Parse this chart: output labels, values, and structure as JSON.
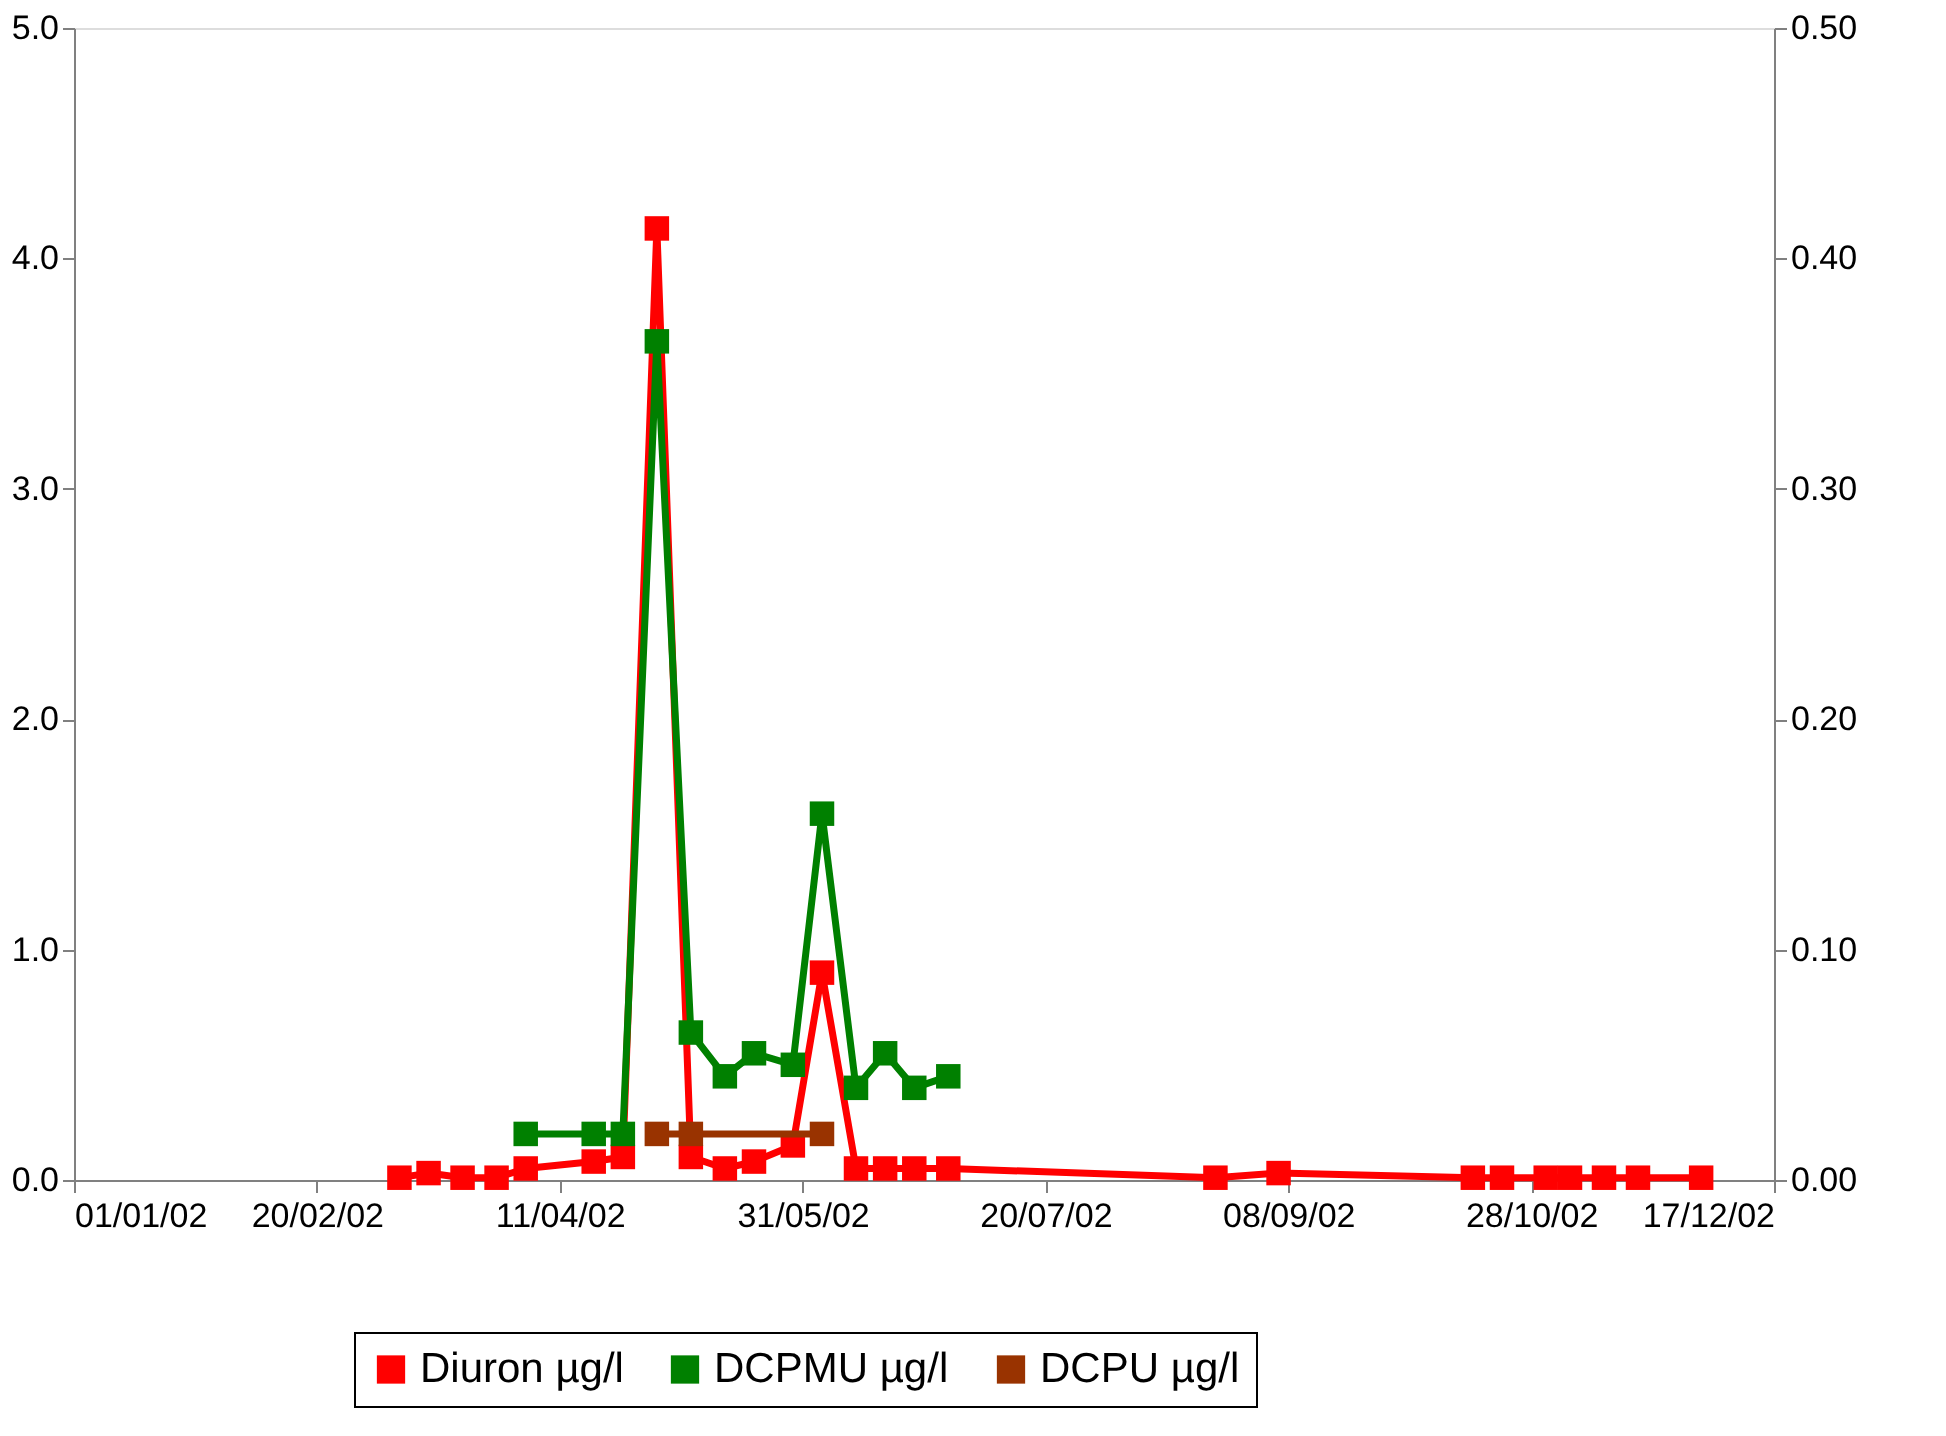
{
  "chart_data": {
    "type": "line",
    "x": [
      "2002-03-09",
      "2002-03-15",
      "2002-03-22",
      "2002-03-29",
      "2002-04-04",
      "2002-04-18",
      "2002-04-24",
      "2002-05-01",
      "2002-05-08",
      "2002-05-15",
      "2002-05-21",
      "2002-05-29",
      "2002-06-04",
      "2002-06-11",
      "2002-06-17",
      "2002-06-23",
      "2002-06-30",
      "2002-08-24",
      "2002-09-06",
      "2002-10-16",
      "2002-10-22",
      "2002-10-31",
      "2002-11-05",
      "2002-11-12",
      "2002-11-19",
      "2002-12-02"
    ],
    "series": [
      {
        "name": "Diuron µg/l",
        "color": "#ff0000",
        "values": [
          0.01,
          0.03,
          0.01,
          0.01,
          0.05,
          0.08,
          0.1,
          4.13,
          0.1,
          0.05,
          0.08,
          0.15,
          0.9,
          0.05,
          0.05,
          0.05,
          0.05,
          0.01,
          0.03,
          0.01,
          0.01,
          0.01,
          0.01,
          0.01,
          0.01,
          0.01
        ]
      },
      {
        "name": "DCPMU µg/l",
        "color": "#008000",
        "axis": "y2",
        "x": [
          "2002-04-04",
          "2002-04-18",
          "2002-04-24",
          "2002-05-01",
          "2002-05-08",
          "2002-05-15",
          "2002-05-21",
          "2002-05-29",
          "2002-06-04",
          "2002-06-11",
          "2002-06-17",
          "2002-06-23",
          "2002-06-30"
        ],
        "values": [
          0.02,
          0.02,
          0.02,
          0.364,
          0.064,
          0.045,
          0.055,
          0.05,
          0.159,
          0.04,
          0.055,
          0.04,
          0.045
        ]
      },
      {
        "name": "DCPU µg/l",
        "color": "#993300",
        "axis": "y2",
        "x": [
          "2002-05-01",
          "2002-05-08",
          "2002-06-04"
        ],
        "values": [
          0.02,
          0.02,
          0.02
        ]
      }
    ],
    "xlim": [
      "2002-01-01",
      "2002-12-17"
    ],
    "xticks": [
      {
        "value": "2002-01-01",
        "label": "01/01/02"
      },
      {
        "value": "2002-02-20",
        "label": "20/02/02"
      },
      {
        "value": "2002-04-11",
        "label": "11/04/02"
      },
      {
        "value": "2002-05-31",
        "label": "31/05/02"
      },
      {
        "value": "2002-07-20",
        "label": "20/07/02"
      },
      {
        "value": "2002-09-08",
        "label": "08/09/02"
      },
      {
        "value": "2002-10-28",
        "label": "28/10/02"
      },
      {
        "value": "2002-12-17",
        "label": "17/12/02"
      }
    ],
    "ylim": [
      0,
      5
    ],
    "yticks": [
      {
        "value": 0,
        "label": "0.0"
      },
      {
        "value": 1,
        "label": "1.0"
      },
      {
        "value": 2,
        "label": "2.0"
      },
      {
        "value": 3,
        "label": "3.0"
      },
      {
        "value": 4,
        "label": "4.0"
      },
      {
        "value": 5,
        "label": "5.0"
      }
    ],
    "y2lim": [
      0,
      0.5
    ],
    "y2ticks": [
      {
        "value": 0,
        "label": "0.00"
      },
      {
        "value": 0.1,
        "label": "0.10"
      },
      {
        "value": 0.2,
        "label": "0.20"
      },
      {
        "value": 0.3,
        "label": "0.30"
      },
      {
        "value": 0.4,
        "label": "0.40"
      },
      {
        "value": 0.5,
        "label": "0.50"
      }
    ],
    "marker": "square",
    "line_style": "solid",
    "grid": false,
    "legend": "bottom"
  }
}
